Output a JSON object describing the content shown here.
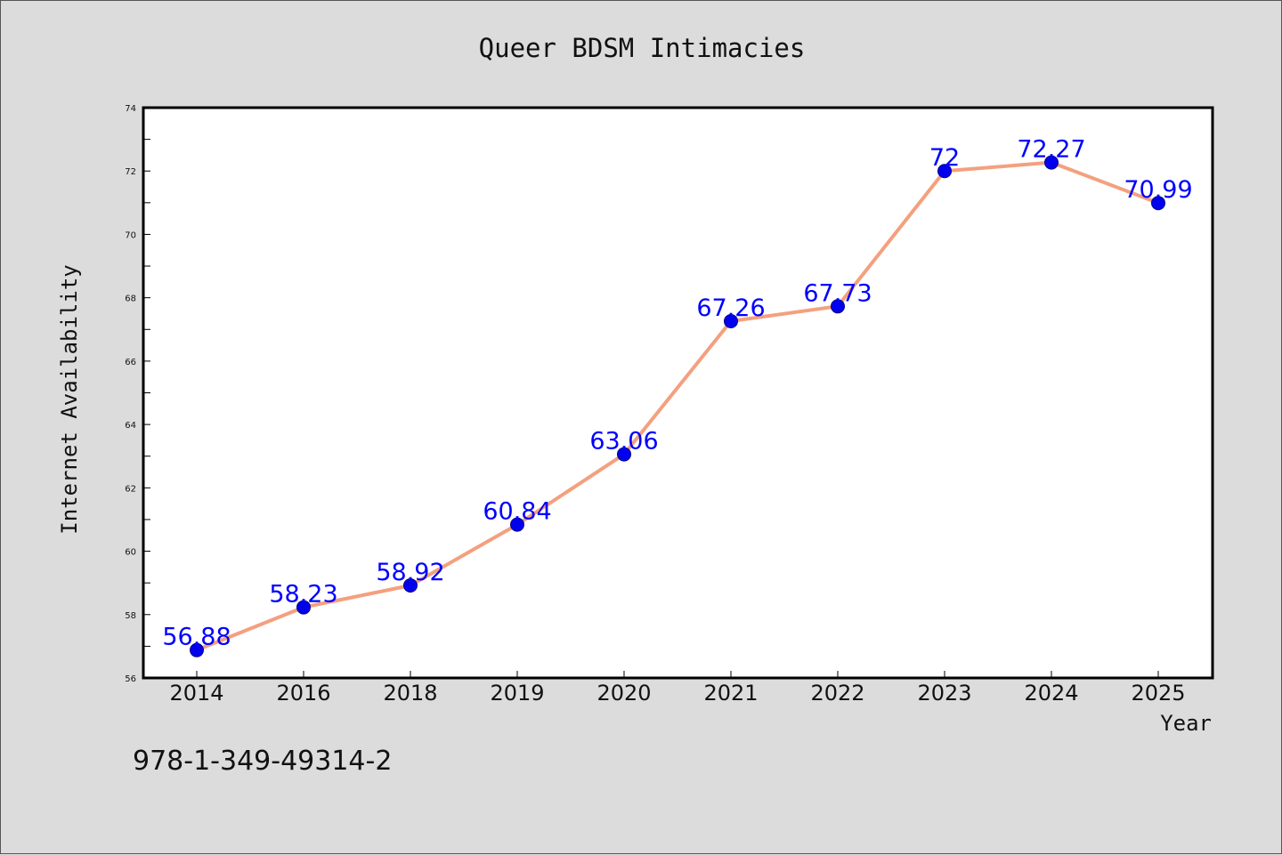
{
  "chart_data": {
    "type": "line",
    "title": "Queer BDSM Intimacies",
    "xlabel": "Year",
    "ylabel": "Internet Availability",
    "categories": [
      "2014",
      "2016",
      "2018",
      "2019",
      "2020",
      "2021",
      "2022",
      "2023",
      "2024",
      "2025"
    ],
    "series": [
      {
        "values": [
          56.88,
          58.23,
          58.92,
          60.84,
          63.06,
          67.26,
          67.73,
          72,
          72.27,
          70.99
        ],
        "data_labels": [
          "56.88",
          "58.23",
          "58.92",
          "60.84",
          "63.06",
          "67.26",
          "67.73",
          "72",
          "72.27",
          "70.99"
        ],
        "line_color": "#f4a07e",
        "marker_color": "#0000ee"
      }
    ],
    "ylim": [
      56,
      74
    ],
    "yticks": [
      "56",
      "58",
      "60",
      "62",
      "64",
      "66",
      "68",
      "70",
      "72",
      "74"
    ],
    "grid": false,
    "legend": "none",
    "label_color": "#0000ff"
  },
  "footer_text": "978-1-349-49314-2"
}
